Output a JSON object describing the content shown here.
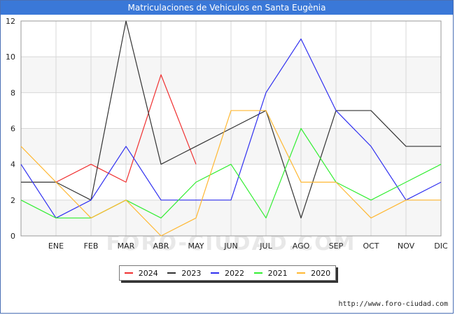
{
  "title": "Matriculaciones de Vehiculos en Santa Eugènia",
  "footer_url": "http://www.foro-ciudad.com",
  "watermark": "FORO-CIUDAD.COM",
  "chart_data": {
    "type": "line",
    "title": "Matriculaciones de Vehiculos en Santa Eugènia",
    "xlabel": "",
    "ylabel": "",
    "categories": [
      "",
      "ENE",
      "FEB",
      "MAR",
      "ABR",
      "MAY",
      "JUN",
      "JUL",
      "AGO",
      "SEP",
      "OCT",
      "NOV",
      "DIC"
    ],
    "ylim": [
      0,
      12
    ],
    "yticks": [
      0,
      2,
      4,
      6,
      8,
      10,
      12
    ],
    "grid": true,
    "legend_position": "bottom",
    "series": [
      {
        "name": "2024",
        "color": "#f03030",
        "values": [
          null,
          3,
          4,
          3,
          9,
          4,
          null,
          null,
          null,
          null,
          null,
          null,
          null
        ]
      },
      {
        "name": "2023",
        "color": "#333333",
        "values": [
          3,
          3,
          2,
          12,
          4,
          5,
          6,
          7,
          1,
          7,
          7,
          5,
          5
        ]
      },
      {
        "name": "2022",
        "color": "#3030f0",
        "values": [
          4,
          1,
          2,
          5,
          2,
          2,
          2,
          8,
          11,
          7,
          5,
          2,
          3
        ]
      },
      {
        "name": "2021",
        "color": "#33ee33",
        "values": [
          2,
          1,
          1,
          2,
          1,
          3,
          4,
          1,
          6,
          3,
          2,
          3,
          4
        ]
      },
      {
        "name": "2020",
        "color": "#ffb833",
        "values": [
          5,
          3,
          1,
          2,
          0,
          1,
          7,
          7,
          3,
          3,
          1,
          2,
          2
        ]
      }
    ]
  }
}
